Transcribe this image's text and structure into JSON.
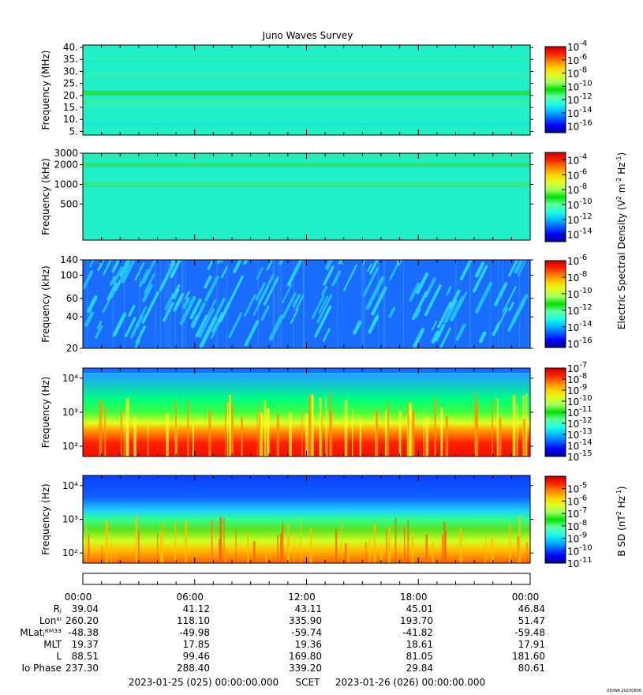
{
  "figure": {
    "title": "Juno Waves Survey",
    "footer_left": "2023-01-25 (025) 00:00:00.000",
    "footer_mid": "SCET",
    "footer_right": "2023-01-26 (026) 00:00:00.000",
    "credit": "UIOWA 20230806"
  },
  "chart_data": [
    {
      "type": "heatmap",
      "panel": "hf-mhz",
      "ylabel": "Frequency (MHz)",
      "yscale": "linear",
      "ylim": [
        3.5,
        41
      ],
      "yticks": [
        "5.",
        "10.",
        "15.",
        "20.",
        "25.",
        "30.",
        "35.",
        "40."
      ],
      "ytick_values": [
        5,
        10,
        15,
        20,
        25,
        30,
        35,
        40
      ],
      "colorbar": {
        "ticks": [
          "-4",
          "-6",
          "-8",
          "-10",
          "-12",
          "-14",
          "-16"
        ],
        "range_exp": [
          -17,
          -4
        ]
      },
      "bands": [
        {
          "y": 21.0,
          "label": "emission band near 21 MHz"
        },
        {
          "y": 17.0,
          "label": "weak band"
        },
        {
          "y": 28.5,
          "label": "weak band"
        }
      ]
    },
    {
      "type": "heatmap",
      "panel": "hf-khz",
      "ylabel": "Frequency (kHz)",
      "yscale": "log",
      "ylim": [
        140,
        3000
      ],
      "yticks": [
        "500",
        "1000",
        "2000",
        "3000"
      ],
      "ytick_values": [
        500,
        1000,
        2000,
        3000
      ],
      "colorbar": {
        "ticks": [
          "-4",
          "-6",
          "-8",
          "-10",
          "-12",
          "-14"
        ],
        "range_exp": [
          -15,
          -3
        ]
      },
      "shared_colorbar_label": "Electric Spectral Density (V² m⁻² Hz⁻¹)"
    },
    {
      "type": "heatmap",
      "panel": "lf-khz",
      "ylabel": "Frequency (kHz)",
      "yscale": "log",
      "ylim": [
        20,
        140
      ],
      "yticks": [
        "20",
        "40",
        "60",
        "100",
        "140"
      ],
      "ytick_values": [
        20,
        40,
        60,
        100,
        140
      ],
      "colorbar": {
        "ticks": [
          "-6",
          "-8",
          "-10",
          "-12",
          "-14",
          "-16"
        ],
        "range_exp": [
          -16.5,
          -6
        ]
      }
    },
    {
      "type": "heatmap",
      "panel": "e-hz",
      "ylabel": "Frequency (Hz)",
      "yscale": "log",
      "ylim": [
        50,
        20000
      ],
      "yticks": [
        "10²",
        "10³",
        "10⁴"
      ],
      "ytick_values": [
        100,
        1000,
        10000
      ],
      "colorbar": {
        "ticks": [
          "-7",
          "-8",
          "-9",
          "-10",
          "-11",
          "-12",
          "-13",
          "-14",
          "-15"
        ],
        "range_exp": [
          -15,
          -7
        ]
      }
    },
    {
      "type": "heatmap",
      "panel": "b-hz",
      "ylabel": "Frequency (Hz)",
      "yscale": "log",
      "ylim": [
        50,
        20000
      ],
      "yticks": [
        "10²",
        "10³",
        "10⁴"
      ],
      "ytick_values": [
        100,
        1000,
        10000
      ],
      "colorbar": {
        "ticks": [
          "-5",
          "-6",
          "-7",
          "-8",
          "-9",
          "-10",
          "-11"
        ],
        "range_exp": [
          -11,
          -4
        ]
      },
      "colorbar_label": "B SD (nT² Hz⁻¹)"
    }
  ],
  "time_axis": {
    "ticks": [
      "00:00",
      "06:00",
      "12:00",
      "18:00",
      "00:00"
    ]
  },
  "ephemeris": {
    "rows": [
      {
        "label": "Rⱼ",
        "values": [
          "39.04",
          "41.12",
          "43.11",
          "45.01",
          "46.84"
        ]
      },
      {
        "label": "Lonᴵᴵᴵ",
        "values": [
          "260.20",
          "118.10",
          "335.90",
          "193.70",
          "51.47"
        ]
      },
      {
        "label": "MLatⱼᴿᴹ³³",
        "values": [
          "-48.38",
          "-49.98",
          "-59.74",
          "-41.82",
          "-59.48"
        ]
      },
      {
        "label": "MLT",
        "values": [
          "19.37",
          "17.85",
          "19.36",
          "18.61",
          "17.91"
        ]
      },
      {
        "label": "L",
        "values": [
          "88.51",
          "99.46",
          "169.80",
          "81.05",
          "181.60"
        ]
      },
      {
        "label": "Io Phase",
        "values": [
          "237.30",
          "288.40",
          "339.20",
          "29.84",
          "80.61"
        ]
      }
    ]
  }
}
